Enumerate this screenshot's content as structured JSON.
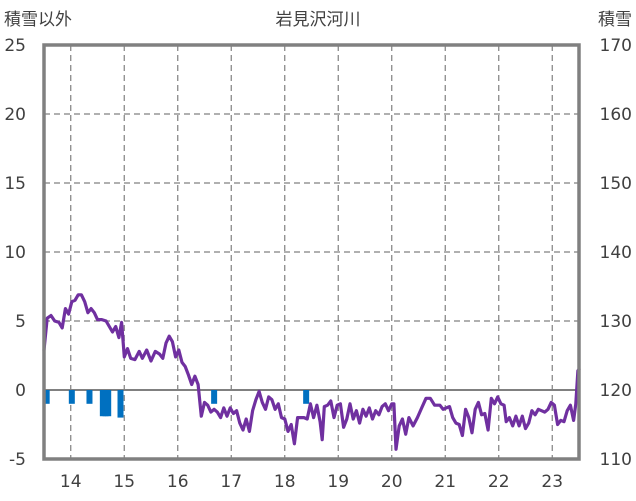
{
  "chart_data": {
    "type": "line",
    "title": "岩見沢河川",
    "left_axis_label": "積雪以外",
    "right_axis_label": "積雪",
    "x": {
      "tick_labels": [
        "14",
        "15",
        "16",
        "17",
        "18",
        "19",
        "20",
        "21",
        "22",
        "23"
      ],
      "range": [
        13.5,
        23.5
      ]
    },
    "left_axis": {
      "range": [
        -5,
        25
      ],
      "ticks": [
        -5,
        0,
        5,
        10,
        15,
        20,
        25
      ],
      "tick_labels": [
        "-5",
        "0",
        "5",
        "10",
        "15",
        "20",
        "25"
      ],
      "horizontal_grid": true
    },
    "right_axis": {
      "range": [
        110,
        170
      ],
      "ticks": [
        110,
        120,
        130,
        140,
        150,
        160,
        170
      ],
      "tick_labels": [
        "110",
        "120",
        "130",
        "140",
        "150",
        "160",
        "170"
      ]
    },
    "vertical_grid": true,
    "series": [
      {
        "type": "line",
        "axis": "left",
        "color": "#7030a0",
        "points": [
          [
            13.5,
            2.9
          ],
          [
            13.56,
            5.2
          ],
          [
            13.63,
            5.4
          ],
          [
            13.7,
            5.0
          ],
          [
            13.78,
            4.9
          ],
          [
            13.84,
            4.5
          ],
          [
            13.9,
            5.9
          ],
          [
            13.96,
            5.5
          ],
          [
            14.02,
            6.4
          ],
          [
            14.08,
            6.5
          ],
          [
            14.14,
            6.9
          ],
          [
            14.2,
            6.9
          ],
          [
            14.26,
            6.4
          ],
          [
            14.32,
            5.6
          ],
          [
            14.38,
            5.9
          ],
          [
            14.44,
            5.6
          ],
          [
            14.5,
            5.1
          ],
          [
            14.58,
            5.1
          ],
          [
            14.66,
            5.0
          ],
          [
            14.72,
            4.6
          ],
          [
            14.78,
            4.2
          ],
          [
            14.84,
            4.6
          ],
          [
            14.9,
            3.8
          ],
          [
            14.95,
            4.9
          ],
          [
            15.0,
            2.4
          ],
          [
            15.06,
            3.0
          ],
          [
            15.12,
            2.3
          ],
          [
            15.2,
            2.2
          ],
          [
            15.28,
            2.8
          ],
          [
            15.34,
            2.3
          ],
          [
            15.42,
            2.9
          ],
          [
            15.5,
            2.1
          ],
          [
            15.58,
            2.8
          ],
          [
            15.66,
            2.6
          ],
          [
            15.72,
            2.3
          ],
          [
            15.78,
            3.4
          ],
          [
            15.84,
            3.9
          ],
          [
            15.9,
            3.5
          ],
          [
            15.96,
            2.4
          ],
          [
            16.02,
            2.9
          ],
          [
            16.08,
            2.0
          ],
          [
            16.14,
            1.7
          ],
          [
            16.2,
            1.1
          ],
          [
            16.26,
            0.4
          ],
          [
            16.32,
            1.0
          ],
          [
            16.38,
            0.4
          ],
          [
            16.44,
            -1.9
          ],
          [
            16.5,
            -0.9
          ],
          [
            16.56,
            -1.1
          ],
          [
            16.62,
            -1.6
          ],
          [
            16.68,
            -1.4
          ],
          [
            16.74,
            -1.6
          ],
          [
            16.8,
            -2.0
          ],
          [
            16.86,
            -1.3
          ],
          [
            16.92,
            -1.9
          ],
          [
            16.98,
            -1.3
          ],
          [
            17.04,
            -1.7
          ],
          [
            17.1,
            -1.5
          ],
          [
            17.16,
            -2.4
          ],
          [
            17.22,
            -2.9
          ],
          [
            17.28,
            -2.1
          ],
          [
            17.34,
            -3.0
          ],
          [
            17.4,
            -1.5
          ],
          [
            17.46,
            -0.7
          ],
          [
            17.52,
            -0.1
          ],
          [
            17.58,
            -0.9
          ],
          [
            17.64,
            -1.4
          ],
          [
            17.7,
            -0.5
          ],
          [
            17.76,
            -0.7
          ],
          [
            17.82,
            -1.4
          ],
          [
            17.88,
            -1.0
          ],
          [
            17.94,
            -2.0
          ],
          [
            18.0,
            -2.1
          ],
          [
            18.06,
            -3.0
          ],
          [
            18.12,
            -2.5
          ],
          [
            18.18,
            -3.9
          ],
          [
            18.24,
            -2.0
          ],
          [
            18.3,
            -2.0
          ],
          [
            18.36,
            -2.0
          ],
          [
            18.42,
            -2.1
          ],
          [
            18.48,
            -1.0
          ],
          [
            18.54,
            -2.0
          ],
          [
            18.6,
            -1.1
          ],
          [
            18.66,
            -2.3
          ],
          [
            18.7,
            -3.6
          ],
          [
            18.74,
            -1.2
          ],
          [
            18.8,
            -1.1
          ],
          [
            18.86,
            -0.8
          ],
          [
            18.92,
            -2.0
          ],
          [
            18.98,
            -1.1
          ],
          [
            19.04,
            -1.0
          ],
          [
            19.1,
            -2.7
          ],
          [
            19.16,
            -2.1
          ],
          [
            19.22,
            -1.0
          ],
          [
            19.28,
            -2.1
          ],
          [
            19.34,
            -1.5
          ],
          [
            19.4,
            -2.4
          ],
          [
            19.46,
            -1.4
          ],
          [
            19.52,
            -1.9
          ],
          [
            19.58,
            -1.3
          ],
          [
            19.64,
            -2.1
          ],
          [
            19.7,
            -1.5
          ],
          [
            19.76,
            -1.8
          ],
          [
            19.82,
            -1.2
          ],
          [
            19.88,
            -1.0
          ],
          [
            19.94,
            -1.5
          ],
          [
            20.0,
            -1.0
          ],
          [
            20.04,
            -1.0
          ],
          [
            20.08,
            -4.3
          ],
          [
            20.14,
            -2.6
          ],
          [
            20.2,
            -2.1
          ],
          [
            20.26,
            -3.2
          ],
          [
            20.32,
            -2.0
          ],
          [
            20.4,
            -2.6
          ],
          [
            20.48,
            -2.0
          ],
          [
            20.56,
            -1.3
          ],
          [
            20.64,
            -0.6
          ],
          [
            20.72,
            -0.6
          ],
          [
            20.8,
            -1.1
          ],
          [
            20.9,
            -1.1
          ],
          [
            20.96,
            -1.4
          ],
          [
            21.02,
            -1.3
          ],
          [
            21.08,
            -1.2
          ],
          [
            21.14,
            -2.0
          ],
          [
            21.2,
            -2.4
          ],
          [
            21.26,
            -2.5
          ],
          [
            21.32,
            -3.3
          ],
          [
            21.38,
            -1.4
          ],
          [
            21.44,
            -2.0
          ],
          [
            21.5,
            -3.1
          ],
          [
            21.56,
            -1.4
          ],
          [
            21.62,
            -0.9
          ],
          [
            21.68,
            -1.8
          ],
          [
            21.74,
            -1.7
          ],
          [
            21.8,
            -2.9
          ],
          [
            21.86,
            -0.6
          ],
          [
            21.92,
            -1.0
          ],
          [
            21.98,
            -0.5
          ],
          [
            22.04,
            -1.0
          ],
          [
            22.1,
            -1.1
          ],
          [
            22.14,
            -2.3
          ],
          [
            22.2,
            -2.0
          ],
          [
            22.26,
            -2.6
          ],
          [
            22.32,
            -1.9
          ],
          [
            22.38,
            -2.6
          ],
          [
            22.44,
            -1.9
          ],
          [
            22.5,
            -2.8
          ],
          [
            22.56,
            -2.4
          ],
          [
            22.62,
            -1.5
          ],
          [
            22.68,
            -1.8
          ],
          [
            22.74,
            -1.4
          ],
          [
            22.8,
            -1.5
          ],
          [
            22.86,
            -1.6
          ],
          [
            22.92,
            -1.4
          ],
          [
            22.98,
            -0.9
          ],
          [
            23.04,
            -1.1
          ],
          [
            23.1,
            -2.5
          ],
          [
            23.16,
            -2.2
          ],
          [
            23.22,
            -2.3
          ],
          [
            23.28,
            -1.5
          ],
          [
            23.34,
            -1.1
          ],
          [
            23.4,
            -2.2
          ],
          [
            23.44,
            -1.0
          ],
          [
            23.48,
            1.4
          ],
          [
            23.5,
            1.5
          ]
        ]
      },
      {
        "type": "bar",
        "axis": "left",
        "color": "#0070c0",
        "bars": [
          [
            13.55,
            -1.0
          ],
          [
            14.02,
            -1.0
          ],
          [
            14.35,
            -1.0
          ],
          [
            14.6,
            -1.9
          ],
          [
            14.65,
            -1.9
          ],
          [
            14.7,
            -1.9
          ],
          [
            14.93,
            -2.0
          ],
          [
            16.68,
            -1.0
          ],
          [
            18.4,
            -1.0
          ]
        ]
      }
    ]
  }
}
